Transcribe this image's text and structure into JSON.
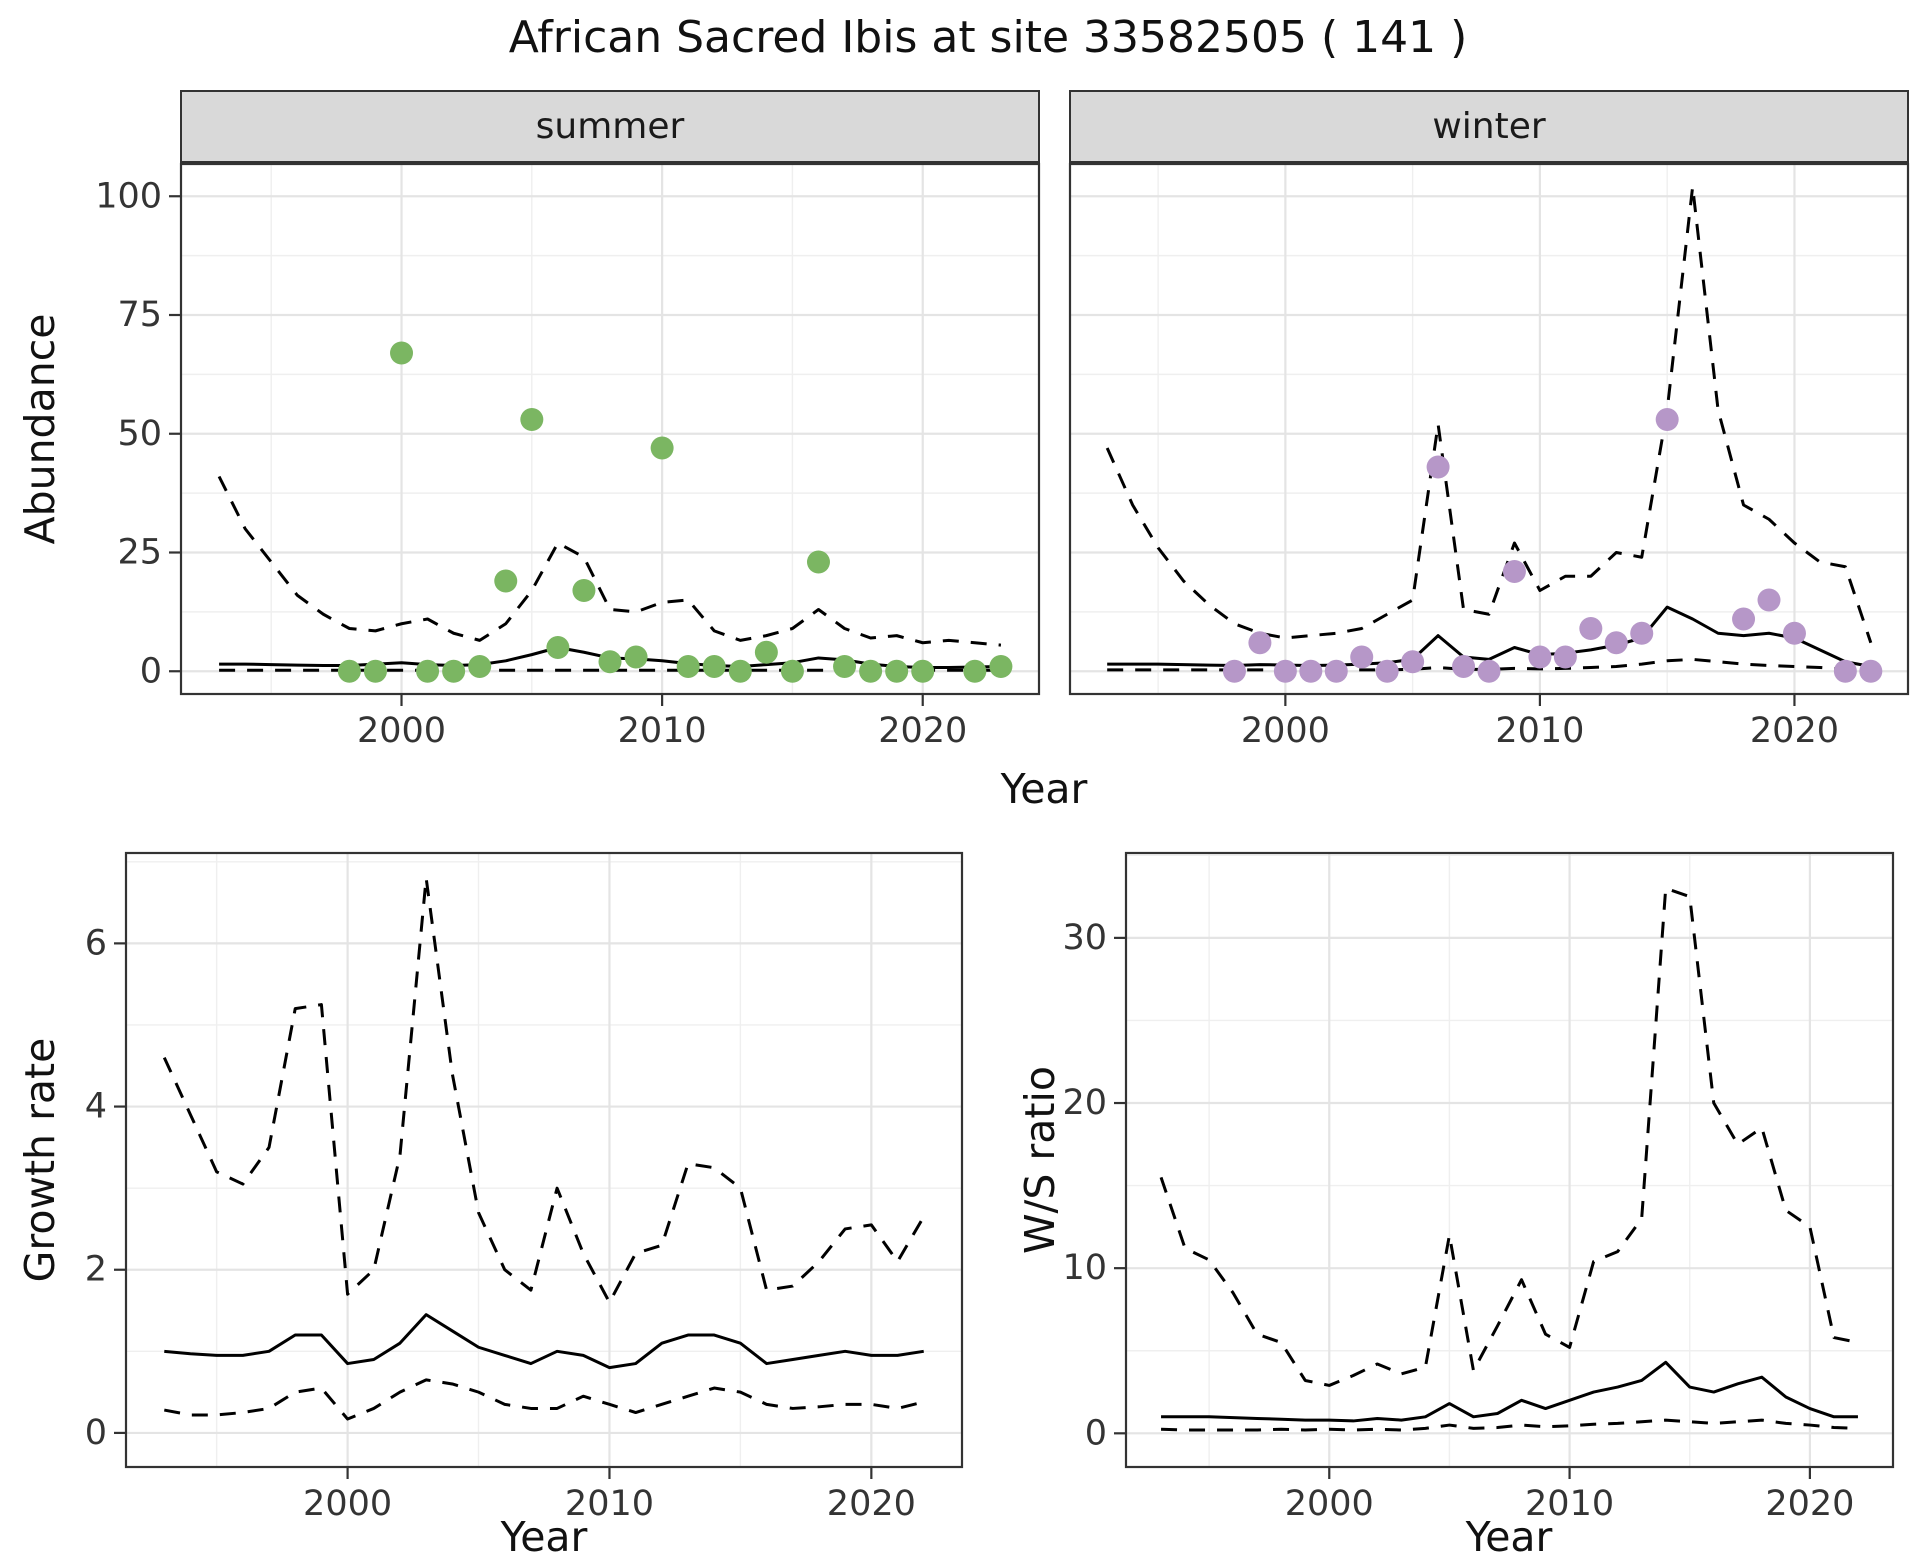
{
  "title": "African Sacred Ibis at site 33582505 ( 141 )",
  "colors": {
    "summer_point": "#7bb662",
    "winter_point": "#b697c8",
    "line": "#000000",
    "grid_major": "#e4e4e4",
    "grid_minor": "#efefef",
    "panel_border": "#333333",
    "strip_bg": "#d9d9d9",
    "tick": "#333333",
    "axis_text": "#343434"
  },
  "chart_data": [
    {
      "id": "abundance-summer",
      "type": "scatter+line",
      "facet_label": "summer",
      "xlabel": "Year",
      "ylabel": "Abundance",
      "xlim": [
        1991.5,
        2024.5
      ],
      "ylim": [
        -5,
        107
      ],
      "x_ticks": [
        2000,
        2010,
        2020
      ],
      "y_ticks": [
        0,
        25,
        50,
        75,
        100
      ],
      "grid": true,
      "legend": "none",
      "years": [
        1993,
        1994,
        1995,
        1996,
        1997,
        1998,
        1999,
        2000,
        2001,
        2002,
        2003,
        2004,
        2005,
        2006,
        2007,
        2008,
        2009,
        2010,
        2011,
        2012,
        2013,
        2014,
        2015,
        2016,
        2017,
        2018,
        2019,
        2020,
        2021,
        2022,
        2023
      ],
      "series": [
        {
          "name": "upper_95ci",
          "style": "dashed",
          "y": [
            41,
            30,
            23,
            16,
            12,
            9,
            8.5,
            10,
            11,
            8,
            6.5,
            10,
            17,
            27,
            24,
            13,
            12.5,
            14.5,
            15,
            8.5,
            6.5,
            7.5,
            9,
            13,
            9,
            7,
            7.5,
            6,
            6.5,
            6,
            5.5
          ]
        },
        {
          "name": "lower_95ci",
          "style": "dashed",
          "y": [
            0.2,
            0.2,
            0.2,
            0.2,
            0.2,
            0.2,
            0.2,
            0.2,
            0.2,
            0.2,
            0.2,
            0.2,
            0.2,
            0.2,
            0.2,
            0.2,
            0.2,
            0.2,
            0.2,
            0.2,
            0.2,
            0.2,
            0.2,
            0.2,
            0.2,
            0.2,
            0.2,
            0.2,
            0.2,
            0.2,
            0.2
          ]
        },
        {
          "name": "fitted_trend",
          "style": "solid",
          "y": [
            1.5,
            1.5,
            1.4,
            1.3,
            1.2,
            1.2,
            1.5,
            1.8,
            1.4,
            1.2,
            1.4,
            2.2,
            3.5,
            5,
            4,
            2.8,
            2.6,
            2.2,
            1.6,
            1.2,
            1,
            1.4,
            1.8,
            2.8,
            2.4,
            1.5,
            1,
            0.8,
            0.8,
            0.9,
            1
          ]
        },
        {
          "name": "observed_counts",
          "style": "points",
          "color_key": "summer_point",
          "x": [
            1998,
            1999,
            2000,
            2001,
            2002,
            2003,
            2004,
            2005,
            2006,
            2007,
            2008,
            2009,
            2010,
            2011,
            2012,
            2013,
            2014,
            2015,
            2016,
            2017,
            2018,
            2019,
            2020,
            2022,
            2023
          ],
          "y": [
            0,
            0,
            67,
            0,
            0,
            1,
            19,
            53,
            5,
            17,
            2,
            3,
            47,
            1,
            1,
            0,
            4,
            0,
            23,
            1,
            0,
            0,
            0,
            0,
            1
          ]
        }
      ]
    },
    {
      "id": "abundance-winter",
      "type": "scatter+line",
      "facet_label": "winter",
      "xlabel": "Year",
      "ylabel": "Abundance",
      "xlim": [
        1991.5,
        2024.5
      ],
      "ylim": [
        -5,
        107
      ],
      "x_ticks": [
        2000,
        2010,
        2020
      ],
      "y_ticks": [
        0,
        25,
        50,
        75,
        100
      ],
      "grid": true,
      "legend": "none",
      "years": [
        1993,
        1994,
        1995,
        1996,
        1997,
        1998,
        1999,
        2000,
        2001,
        2002,
        2003,
        2004,
        2005,
        2006,
        2007,
        2008,
        2009,
        2010,
        2011,
        2012,
        2013,
        2014,
        2015,
        2016,
        2017,
        2018,
        2019,
        2020,
        2021,
        2022,
        2023
      ],
      "series": [
        {
          "name": "upper_95ci",
          "style": "dashed",
          "y": [
            47,
            35,
            26,
            19,
            14,
            10,
            8,
            7,
            7.5,
            8,
            9,
            12,
            15,
            52,
            13,
            12,
            27,
            17,
            20,
            20,
            25,
            24,
            55,
            102,
            55,
            35,
            32,
            27,
            23,
            22,
            6
          ]
        },
        {
          "name": "lower_95ci",
          "style": "dashed",
          "y": [
            0.3,
            0.3,
            0.3,
            0.3,
            0.3,
            0.3,
            0.3,
            0.3,
            0.3,
            0.3,
            0.3,
            0.3,
            0.4,
            0.8,
            0.4,
            0.4,
            0.6,
            0.5,
            0.6,
            0.8,
            1,
            1.5,
            2.2,
            2.5,
            2,
            1.5,
            1.2,
            1,
            0.8,
            0.4,
            0.2
          ]
        },
        {
          "name": "fitted_trend",
          "style": "solid",
          "y": [
            1.5,
            1.5,
            1.5,
            1.4,
            1.3,
            1.2,
            1.4,
            1.3,
            1.2,
            1.3,
            1.5,
            1.8,
            2.5,
            7.5,
            3,
            2.5,
            5,
            3.5,
            3.8,
            4.5,
            5.5,
            7,
            13.5,
            11,
            8,
            7.5,
            8,
            7,
            4.5,
            2,
            1
          ]
        },
        {
          "name": "observed_counts",
          "style": "points",
          "color_key": "winter_point",
          "x": [
            1998,
            1999,
            2000,
            2001,
            2002,
            2003,
            2004,
            2005,
            2006,
            2007,
            2008,
            2009,
            2010,
            2011,
            2012,
            2013,
            2014,
            2015,
            2018,
            2019,
            2020,
            2022,
            2023
          ],
          "y": [
            0,
            6,
            0,
            0,
            0,
            3,
            0,
            2,
            43,
            1,
            0,
            21,
            3,
            3,
            9,
            6,
            8,
            53,
            11,
            15,
            8,
            0,
            0
          ]
        }
      ]
    },
    {
      "id": "growth-rate",
      "type": "line",
      "facet_label": "",
      "xlabel": "Year",
      "ylabel": "Growth rate",
      "xlim": [
        1991.5,
        2023.5
      ],
      "ylim": [
        -0.43,
        7.12
      ],
      "x_ticks": [
        2000,
        2010,
        2020
      ],
      "y_ticks": [
        0,
        2,
        4,
        6
      ],
      "grid": true,
      "legend": "none",
      "years": [
        1993,
        1994,
        1995,
        1996,
        1997,
        1998,
        1999,
        2000,
        2001,
        2002,
        2003,
        2004,
        2005,
        2006,
        2007,
        2008,
        2009,
        2010,
        2011,
        2012,
        2013,
        2014,
        2015,
        2016,
        2017,
        2018,
        2019,
        2020,
        2021,
        2022
      ],
      "series": [
        {
          "name": "upper_95ci",
          "style": "dashed",
          "y": [
            4.6,
            3.9,
            3.2,
            3.05,
            3.5,
            5.2,
            5.25,
            1.7,
            2,
            3.4,
            6.8,
            4.4,
            2.7,
            2,
            1.75,
            3,
            2.2,
            1.6,
            2.2,
            2.3,
            3.3,
            3.25,
            3,
            1.75,
            1.8,
            2.1,
            2.5,
            2.55,
            2.1,
            2.65
          ]
        },
        {
          "name": "lower_95ci",
          "style": "dashed",
          "y": [
            0.28,
            0.22,
            0.22,
            0.25,
            0.3,
            0.5,
            0.55,
            0.17,
            0.3,
            0.5,
            0.65,
            0.6,
            0.5,
            0.35,
            0.3,
            0.3,
            0.45,
            0.35,
            0.25,
            0.35,
            0.45,
            0.55,
            0.5,
            0.35,
            0.3,
            0.32,
            0.35,
            0.35,
            0.3,
            0.38
          ]
        },
        {
          "name": "fitted_trend",
          "style": "solid",
          "y": [
            1,
            0.97,
            0.95,
            0.95,
            1,
            1.2,
            1.2,
            0.85,
            0.9,
            1.1,
            1.45,
            1.25,
            1.05,
            0.95,
            0.85,
            1,
            0.95,
            0.8,
            0.85,
            1.1,
            1.2,
            1.2,
            1.1,
            0.85,
            0.9,
            0.95,
            1,
            0.95,
            0.95,
            1
          ]
        }
      ]
    },
    {
      "id": "ws-ratio",
      "type": "line",
      "facet_label": "",
      "xlabel": "Year",
      "ylabel": "W/S ratio",
      "xlim": [
        1991.5,
        2023.5
      ],
      "ylim": [
        -2.1,
        35.2
      ],
      "x_ticks": [
        2000,
        2010,
        2020
      ],
      "y_ticks": [
        0,
        10,
        20,
        30
      ],
      "grid": true,
      "legend": "none",
      "years": [
        1993,
        1994,
        1995,
        1996,
        1997,
        1998,
        1999,
        2000,
        2001,
        2002,
        2003,
        2004,
        2005,
        2006,
        2007,
        2008,
        2009,
        2010,
        2011,
        2012,
        2013,
        2014,
        2015,
        2016,
        2017,
        2018,
        2019,
        2020,
        2021,
        2022
      ],
      "series": [
        {
          "name": "upper_95ci",
          "style": "dashed",
          "y": [
            15.5,
            11.2,
            10.5,
            8.5,
            6,
            5.5,
            3.2,
            2.9,
            3.5,
            4.2,
            3.6,
            4,
            12,
            3.8,
            6.5,
            9.3,
            6,
            5.2,
            10.4,
            11,
            13,
            33,
            32.5,
            20,
            17.5,
            18.5,
            13.5,
            12.5,
            5.8,
            5.5
          ]
        },
        {
          "name": "lower_95ci",
          "style": "dashed",
          "y": [
            0.25,
            0.2,
            0.2,
            0.2,
            0.2,
            0.25,
            0.2,
            0.25,
            0.2,
            0.25,
            0.2,
            0.3,
            0.5,
            0.3,
            0.35,
            0.5,
            0.4,
            0.45,
            0.55,
            0.6,
            0.7,
            0.8,
            0.7,
            0.6,
            0.7,
            0.8,
            0.6,
            0.5,
            0.35,
            0.3
          ]
        },
        {
          "name": "fitted_trend",
          "style": "solid",
          "y": [
            1,
            1,
            1,
            0.95,
            0.9,
            0.85,
            0.8,
            0.8,
            0.75,
            0.9,
            0.8,
            1,
            1.8,
            1,
            1.2,
            2,
            1.5,
            2,
            2.5,
            2.8,
            3.2,
            4.3,
            2.8,
            2.5,
            3,
            3.4,
            2.2,
            1.5,
            1,
            1
          ]
        }
      ]
    }
  ]
}
